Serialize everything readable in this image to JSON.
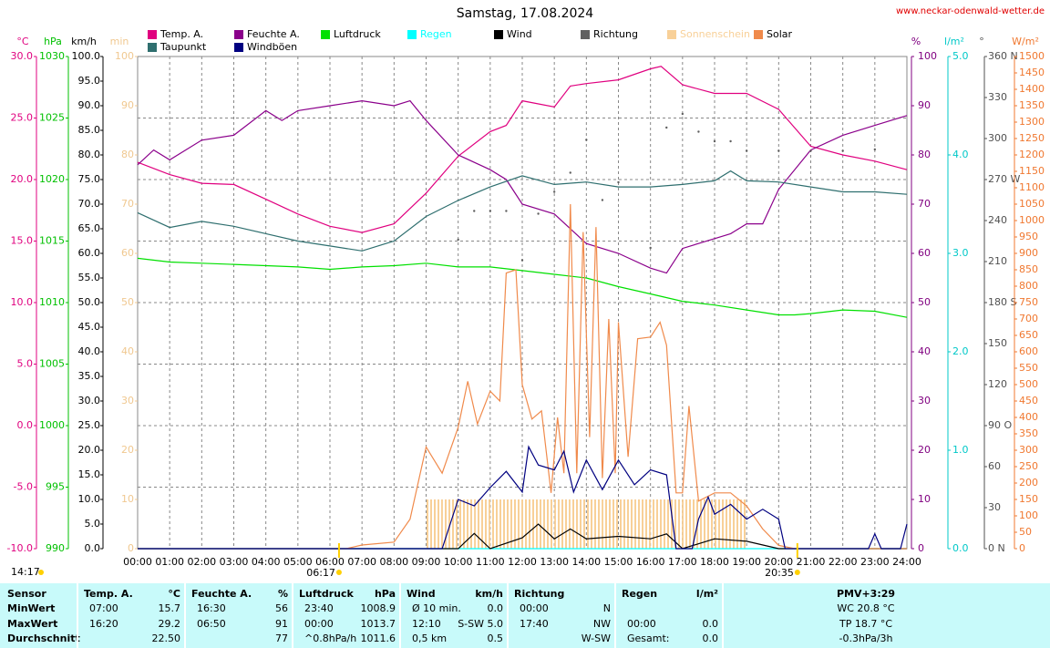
{
  "chart_data": {
    "type": "line",
    "title": "Samstag, 17.08.2024",
    "source": "www.neckar-odenwald-wetter.de",
    "current_time": "14:17",
    "sunrise": {
      "label": "06:17",
      "x": 6.283
    },
    "sunset": {
      "label": "20:35",
      "x": 20.583
    },
    "xlim": [
      0,
      24
    ],
    "xticks": [
      {
        "value": 0,
        "label": "00:00"
      },
      {
        "value": 1,
        "label": "01:00"
      },
      {
        "value": 2,
        "label": "02:00"
      },
      {
        "value": 3,
        "label": "03:00"
      },
      {
        "value": 4,
        "label": "04:00"
      },
      {
        "value": 5,
        "label": "05:00"
      },
      {
        "value": 6,
        "label": "06:00"
      },
      {
        "value": 7,
        "label": "07:00"
      },
      {
        "value": 8,
        "label": "08:00"
      },
      {
        "value": 9,
        "label": "09:00"
      },
      {
        "value": 10,
        "label": "10:00"
      },
      {
        "value": 11,
        "label": "11:00"
      },
      {
        "value": 12,
        "label": "12:00"
      },
      {
        "value": 13,
        "label": "13:00"
      },
      {
        "value": 14,
        "label": "14:00"
      },
      {
        "value": 15,
        "label": "15:00"
      },
      {
        "value": 16,
        "label": "16:00"
      },
      {
        "value": 17,
        "label": "17:00"
      },
      {
        "value": 18,
        "label": "18:00"
      },
      {
        "value": 19,
        "label": "19:00"
      },
      {
        "value": 20,
        "label": "20:00"
      },
      {
        "value": 21,
        "label": "21:00"
      },
      {
        "value": 22,
        "label": "22:00"
      },
      {
        "value": 23,
        "label": "23:00"
      },
      {
        "value": 24,
        "label": "24:00"
      }
    ],
    "grid": true,
    "axes": [
      {
        "label": "°C",
        "color": "#e0007f",
        "lim": [
          -10,
          30
        ],
        "ticks": [
          {
            "value": -10,
            "label": "-10.0"
          },
          {
            "value": -5,
            "label": "-5.0"
          },
          {
            "value": 0,
            "label": "0.0"
          },
          {
            "value": 5,
            "label": "5.0"
          },
          {
            "value": 10,
            "label": "10.0"
          },
          {
            "value": 15,
            "label": "15.0"
          },
          {
            "value": 20,
            "label": "20.0"
          },
          {
            "value": 25,
            "label": "25.0"
          },
          {
            "value": 30,
            "label": "30.0"
          }
        ]
      },
      {
        "label": "hPa",
        "color": "#00c000",
        "lim": [
          990,
          1030
        ],
        "ticks": [
          990,
          995,
          1000,
          1005,
          1010,
          1015,
          1020,
          1025,
          1030
        ]
      },
      {
        "label": "km/h",
        "color": "#000000",
        "lim": [
          0,
          100
        ],
        "ticks": [
          {
            "value": 0,
            "label": "0.0"
          },
          {
            "value": 5,
            "label": "5.0"
          },
          {
            "value": 10,
            "label": "10.0"
          },
          {
            "value": 15,
            "label": "15.0"
          },
          {
            "value": 20,
            "label": "20.0"
          },
          {
            "value": 25,
            "label": "25.0"
          },
          {
            "value": 30,
            "label": "30.0"
          },
          {
            "value": 35,
            "label": "35.0"
          },
          {
            "value": 40,
            "label": "40.0"
          },
          {
            "value": 45,
            "label": "45.0"
          },
          {
            "value": 50,
            "label": "50.0"
          },
          {
            "value": 55,
            "label": "55.0"
          },
          {
            "value": 60,
            "label": "60.0"
          },
          {
            "value": 65,
            "label": "65.0"
          },
          {
            "value": 70,
            "label": "70.0"
          },
          {
            "value": 75,
            "label": "75.0"
          },
          {
            "value": 80,
            "label": "80.0"
          },
          {
            "value": 85,
            "label": "85.0"
          },
          {
            "value": 90,
            "label": "90.0"
          },
          {
            "value": 95,
            "label": "95.0"
          },
          {
            "value": 100,
            "label": "100.0"
          }
        ]
      },
      {
        "label": "min",
        "color": "#f0c890",
        "lim": [
          0,
          100
        ],
        "ticks": [
          0,
          10,
          20,
          30,
          40,
          50,
          60,
          70,
          80,
          90,
          100
        ]
      },
      {
        "label": "%",
        "color": "#800080",
        "lim": [
          0,
          100
        ],
        "ticks": [
          0,
          10,
          20,
          30,
          40,
          50,
          60,
          70,
          80,
          90,
          100
        ]
      },
      {
        "label": "l/m²",
        "color": "#00c8c8",
        "lim": [
          0,
          5
        ],
        "ticks": [
          {
            "value": 0,
            "label": "0.0"
          },
          {
            "value": 1,
            "label": "1.0"
          },
          {
            "value": 2,
            "label": "2.0"
          },
          {
            "value": 3,
            "label": "3.0"
          },
          {
            "value": 4,
            "label": "4.0"
          },
          {
            "value": 5,
            "label": "5.0"
          }
        ]
      },
      {
        "label": "°",
        "color": "#505050",
        "lim": [
          0,
          360
        ],
        "ticks": [
          {
            "value": 0,
            "label": "0 N"
          },
          30,
          60,
          {
            "value": 90,
            "label": "90 O"
          },
          120,
          150,
          {
            "value": 180,
            "label": "180 S"
          },
          210,
          240,
          {
            "value": 270,
            "label": "270 W"
          },
          300,
          330,
          {
            "value": 360,
            "label": "360 N"
          }
        ]
      },
      {
        "label": "W/m²",
        "color": "#f07830",
        "lim": [
          0,
          1500
        ],
        "ticks": [
          0,
          50,
          100,
          150,
          200,
          250,
          300,
          350,
          400,
          450,
          500,
          550,
          600,
          650,
          700,
          750,
          800,
          850,
          900,
          950,
          1000,
          1050,
          1100,
          1150,
          1200,
          1250,
          1300,
          1350,
          1400,
          1450,
          1500
        ]
      }
    ],
    "series": [
      {
        "name": "Temp. A.",
        "color": "#e0007f",
        "type": "line",
        "axis": "°C",
        "x": [
          0,
          1,
          2,
          3,
          4,
          5,
          6,
          7,
          8,
          9,
          10,
          11,
          11.5,
          12,
          13,
          13.5,
          14,
          15,
          16,
          16.33,
          17,
          18,
          19,
          20,
          21,
          22,
          23,
          24
        ],
        "values": [
          21.4,
          20.4,
          19.7,
          19.6,
          18.4,
          17.2,
          16.2,
          15.7,
          16.4,
          18.9,
          21.9,
          23.9,
          24.4,
          26.4,
          25.9,
          27.6,
          27.8,
          28.1,
          29.0,
          29.2,
          27.7,
          27.0,
          27.0,
          25.7,
          22.7,
          22.0,
          21.5,
          20.8
        ]
      },
      {
        "name": "Feuchte A.",
        "color": "#8b008b",
        "type": "line",
        "axis": "%",
        "x": [
          0,
          0.5,
          1,
          2,
          3,
          4,
          4.5,
          5,
          6,
          7,
          8,
          8.5,
          9,
          10,
          11,
          11.5,
          12,
          13,
          14,
          15,
          16,
          16.5,
          17,
          18,
          18.5,
          19,
          19.5,
          20,
          21,
          22,
          23,
          24
        ],
        "values": [
          78,
          81,
          79,
          83,
          84,
          89,
          87,
          89,
          90,
          91,
          90,
          91,
          87,
          80,
          77,
          75,
          70,
          68,
          62,
          60,
          57,
          56,
          61,
          63,
          64,
          66,
          66,
          73,
          81,
          84,
          86,
          88
        ]
      },
      {
        "name": "Luftdruck",
        "color": "#00e000",
        "type": "line",
        "axis": "hPa",
        "x": [
          0,
          1,
          2,
          3,
          4,
          5,
          6,
          7,
          8,
          9,
          10,
          11,
          12,
          13,
          14,
          15,
          16,
          17,
          18,
          19,
          20,
          20.5,
          21,
          22,
          23,
          24
        ],
        "values": [
          1013.6,
          1013.3,
          1013.2,
          1013.1,
          1013.0,
          1012.9,
          1012.7,
          1012.9,
          1013.0,
          1013.2,
          1012.9,
          1012.9,
          1012.6,
          1012.3,
          1012.0,
          1011.3,
          1010.7,
          1010.1,
          1009.8,
          1009.4,
          1009.0,
          1009.0,
          1009.1,
          1009.4,
          1009.3,
          1008.8
        ]
      },
      {
        "name": "Regen",
        "color": "#00ffff",
        "type": "line",
        "axis": "l/m²",
        "x": [
          0,
          24
        ],
        "values": [
          0,
          0
        ]
      },
      {
        "name": "Wind",
        "color": "#000000",
        "type": "line",
        "axis": "km/h",
        "x": [
          0,
          10,
          10.5,
          11,
          12,
          12.5,
          13,
          13.5,
          14,
          15,
          16,
          16.5,
          17,
          18,
          19,
          20,
          24
        ],
        "values": [
          0,
          0,
          3.1,
          0,
          2.2,
          5.0,
          2.0,
          4.0,
          2.0,
          2.5,
          2.0,
          3.0,
          0,
          2.0,
          1.5,
          0,
          0
        ]
      },
      {
        "name": "Richtung",
        "color": "#606060",
        "type": "scatter",
        "axis": "°",
        "x": [
          10,
          10.5,
          11,
          11.5,
          12,
          12.5,
          13,
          13.5,
          14,
          14.5,
          15,
          16,
          16.5,
          17,
          17.5,
          18,
          18.5,
          19,
          20,
          21,
          22,
          23
        ],
        "values": [
          226,
          247,
          247,
          247,
          211,
          245,
          261,
          275,
          299,
          255,
          268,
          220,
          308,
          318,
          305,
          298,
          298,
          291,
          291,
          291,
          291,
          292
        ]
      },
      {
        "name": "Sonnenschein",
        "color": "#f8d098",
        "type": "bar",
        "axis": "min",
        "x": [
          9,
          9.5,
          10,
          10.5,
          11,
          11.5,
          12,
          12.5,
          13,
          13.5,
          14,
          14.5,
          15,
          15.5,
          16,
          16.5,
          17,
          17.5,
          18,
          18.5
        ],
        "values": [
          10,
          10,
          10,
          10,
          10,
          10,
          10,
          10,
          10,
          10,
          10,
          10,
          10,
          10,
          10,
          10,
          10,
          10,
          10,
          10
        ]
      },
      {
        "name": "Solar",
        "color": "#f08a4b",
        "type": "line",
        "axis": "W/m²",
        "x": [
          0,
          6.5,
          7,
          8,
          8.5,
          9,
          9.5,
          10,
          10.3,
          10.6,
          11,
          11.3,
          11.5,
          11.8,
          12,
          12.3,
          12.6,
          12.9,
          13.1,
          13.3,
          13.5,
          13.7,
          13.9,
          14.1,
          14.3,
          14.5,
          14.7,
          14.9,
          15,
          15.3,
          15.6,
          16,
          16.3,
          16.5,
          16.8,
          17,
          17.2,
          17.5,
          18,
          18.5,
          19,
          19.5,
          20,
          20.5,
          24
        ],
        "values": [
          0,
          0,
          11,
          20,
          90,
          310,
          230,
          370,
          510,
          380,
          480,
          450,
          840,
          850,
          500,
          395,
          420,
          170,
          400,
          230,
          1050,
          230,
          965,
          340,
          980,
          215,
          700,
          230,
          690,
          280,
          640,
          645,
          690,
          620,
          170,
          170,
          435,
          145,
          170,
          170,
          130,
          60,
          10,
          0,
          0
        ]
      },
      {
        "name": "Taupunkt",
        "color": "#2f6f6f",
        "type": "line",
        "axis": "°C",
        "x": [
          0,
          1,
          2,
          3,
          4,
          5,
          6,
          7,
          8,
          9,
          10,
          11,
          12,
          13,
          14,
          15,
          16,
          17,
          18,
          18.5,
          19,
          20,
          21,
          22,
          23,
          24
        ],
        "values": [
          17.3,
          16.1,
          16.6,
          16.2,
          15.6,
          15.0,
          14.6,
          14.2,
          15.0,
          17.0,
          18.3,
          19.4,
          20.3,
          19.6,
          19.8,
          19.4,
          19.4,
          19.6,
          19.9,
          20.7,
          19.9,
          19.8,
          19.4,
          19.0,
          19.0,
          18.8
        ]
      },
      {
        "name": "Windböen",
        "color": "#000080",
        "type": "line",
        "axis": "km/h",
        "x": [
          0,
          9.5,
          10,
          10.5,
          11,
          11.5,
          12,
          12.2,
          12.5,
          13,
          13.3,
          13.6,
          14,
          14.5,
          15,
          15.5,
          16,
          16.5,
          16.8,
          17.3,
          17.5,
          17.8,
          18,
          18.5,
          19,
          19.5,
          20,
          20.2,
          22.8,
          23,
          23.2,
          23.8,
          24
        ],
        "values": [
          0,
          0,
          10,
          8.7,
          12.4,
          15.7,
          11.5,
          20.7,
          17,
          16,
          19.8,
          11.5,
          18,
          12,
          18,
          13,
          16,
          15,
          0,
          0,
          6,
          10.5,
          7,
          9,
          6,
          8,
          6,
          0,
          0,
          3,
          0,
          0,
          5
        ]
      }
    ]
  },
  "table": {
    "labels": [
      "Sensor",
      "MinWert",
      "MaxWert",
      "Durchschnitt"
    ],
    "groups": [
      {
        "title": "Temp. A.",
        "unit": "°C",
        "rows": [
          [
            "07:00",
            "15.7"
          ],
          [
            "16:20",
            "29.2"
          ],
          [
            null,
            "22.50"
          ]
        ]
      },
      {
        "title": "Feuchte A.",
        "unit": "%",
        "rows": [
          [
            "16:30",
            "56"
          ],
          [
            "06:50",
            "91"
          ],
          [
            null,
            "77"
          ]
        ]
      },
      {
        "title": "Luftdruck",
        "unit": "hPa",
        "rows": [
          [
            "23:40",
            "1008.9"
          ],
          [
            "00:00",
            "1013.7"
          ],
          [
            "^0.8hPa/h",
            "1011.6"
          ]
        ]
      },
      {
        "title": "Wind",
        "unit": "km/h",
        "rows": [
          [
            "Ø 10 min.",
            "0.0"
          ],
          [
            "12:10",
            "S-SW 5.0"
          ],
          [
            "0,5 km",
            "0.5"
          ]
        ]
      },
      {
        "title": "Richtung",
        "unit": null,
        "rows": [
          [
            "00:00",
            "N"
          ],
          [
            "17:40",
            "NW"
          ],
          [
            null,
            "W-SW"
          ]
        ]
      },
      {
        "title": "Regen",
        "unit": "l/m²",
        "rows": [
          [
            null,
            null
          ],
          [
            "00:00",
            "0.0"
          ],
          [
            "Gesamt:",
            "0.0"
          ]
        ]
      }
    ],
    "pmv": {
      "title": "PMV+3:29",
      "lines": [
        "WC 20.8 °C",
        "TP 18.7 °C",
        "-0.3hPa/3h"
      ]
    }
  }
}
